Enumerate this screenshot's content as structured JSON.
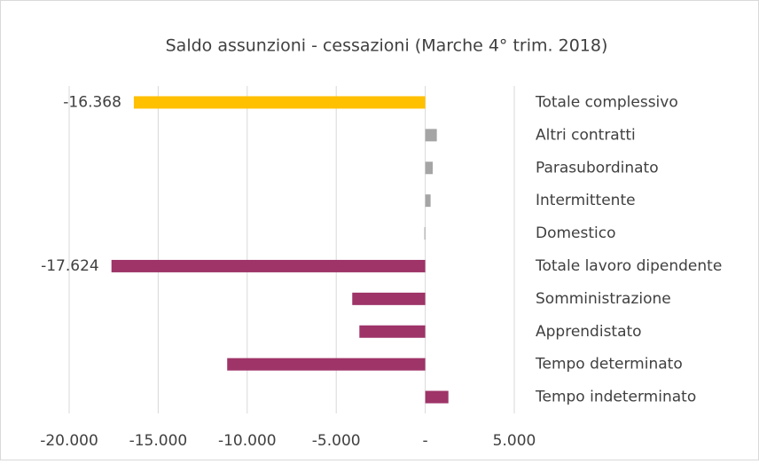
{
  "chart_data": {
    "type": "barh",
    "title": "Saldo assunzioni - cessazioni (Marche 4° trim. 2018)",
    "categories": [
      "Totale complessivo",
      "Altri contratti",
      "Parasubordinato",
      "Intermittente",
      "Domestico",
      "Totale lavoro dipendente",
      "Somministrazione",
      "Apprendistato",
      "Tempo determinato",
      "Tempo indeterminato"
    ],
    "values": [
      -16368,
      650,
      420,
      300,
      -50,
      -17624,
      -4100,
      -3700,
      -11124,
      1300
    ],
    "value_labels": [
      "-16.368",
      null,
      null,
      null,
      null,
      "-17.624",
      null,
      null,
      null,
      null
    ],
    "colors": [
      "#ffc000",
      "#a5a5a5",
      "#a5a5a5",
      "#a5a5a5",
      "#a5a5a5",
      "#9e3468",
      "#9e3468",
      "#9e3468",
      "#9e3468",
      "#9e3468"
    ],
    "xlim": [
      -20000,
      5000
    ],
    "xticks": [
      {
        "value": -20000,
        "label": "-20.000"
      },
      {
        "value": -15000,
        "label": "-15.000"
      },
      {
        "value": -10000,
        "label": "-10.000"
      },
      {
        "value": -5000,
        "label": "-5.000"
      },
      {
        "value": 0,
        "label": "-"
      },
      {
        "value": 5000,
        "label": "5.000"
      }
    ],
    "grid": true
  }
}
